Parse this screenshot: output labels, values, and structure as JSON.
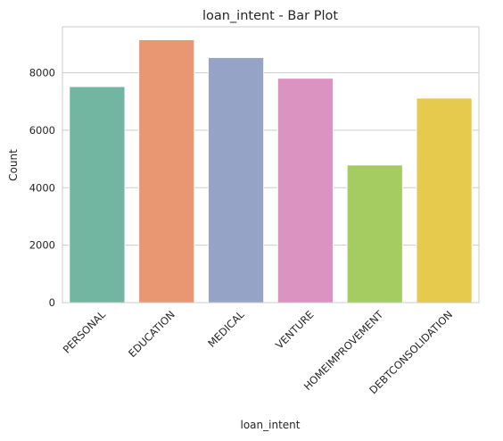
{
  "chart_data": {
    "type": "bar",
    "title": "loan_intent - Bar Plot",
    "xlabel": "loan_intent",
    "ylabel": "Count",
    "categories": [
      "PERSONAL",
      "EDUCATION",
      "MEDICAL",
      "VENTURE",
      "HOMEIMPROVEMENT",
      "DEBTCONSOLIDATION"
    ],
    "values": [
      7520,
      9150,
      8530,
      7810,
      4790,
      7120
    ],
    "colors": [
      "#72b6a1",
      "#e99673",
      "#94a3c6",
      "#db93c1",
      "#a5cc61",
      "#e5ca4d"
    ],
    "yticks": [
      0,
      2000,
      4000,
      6000,
      8000
    ],
    "ylim": [
      0,
      9600
    ],
    "grid": "horizontal",
    "legend": "none"
  }
}
